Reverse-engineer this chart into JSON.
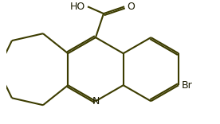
{
  "bond_color": "#3c3c00",
  "bg_color": "#ffffff",
  "lw": 1.5,
  "fs": 9.0,
  "text_color": "#1a1a00",
  "xlim": [
    0.0,
    6.5
  ],
  "ylim": [
    -0.3,
    3.5
  ]
}
